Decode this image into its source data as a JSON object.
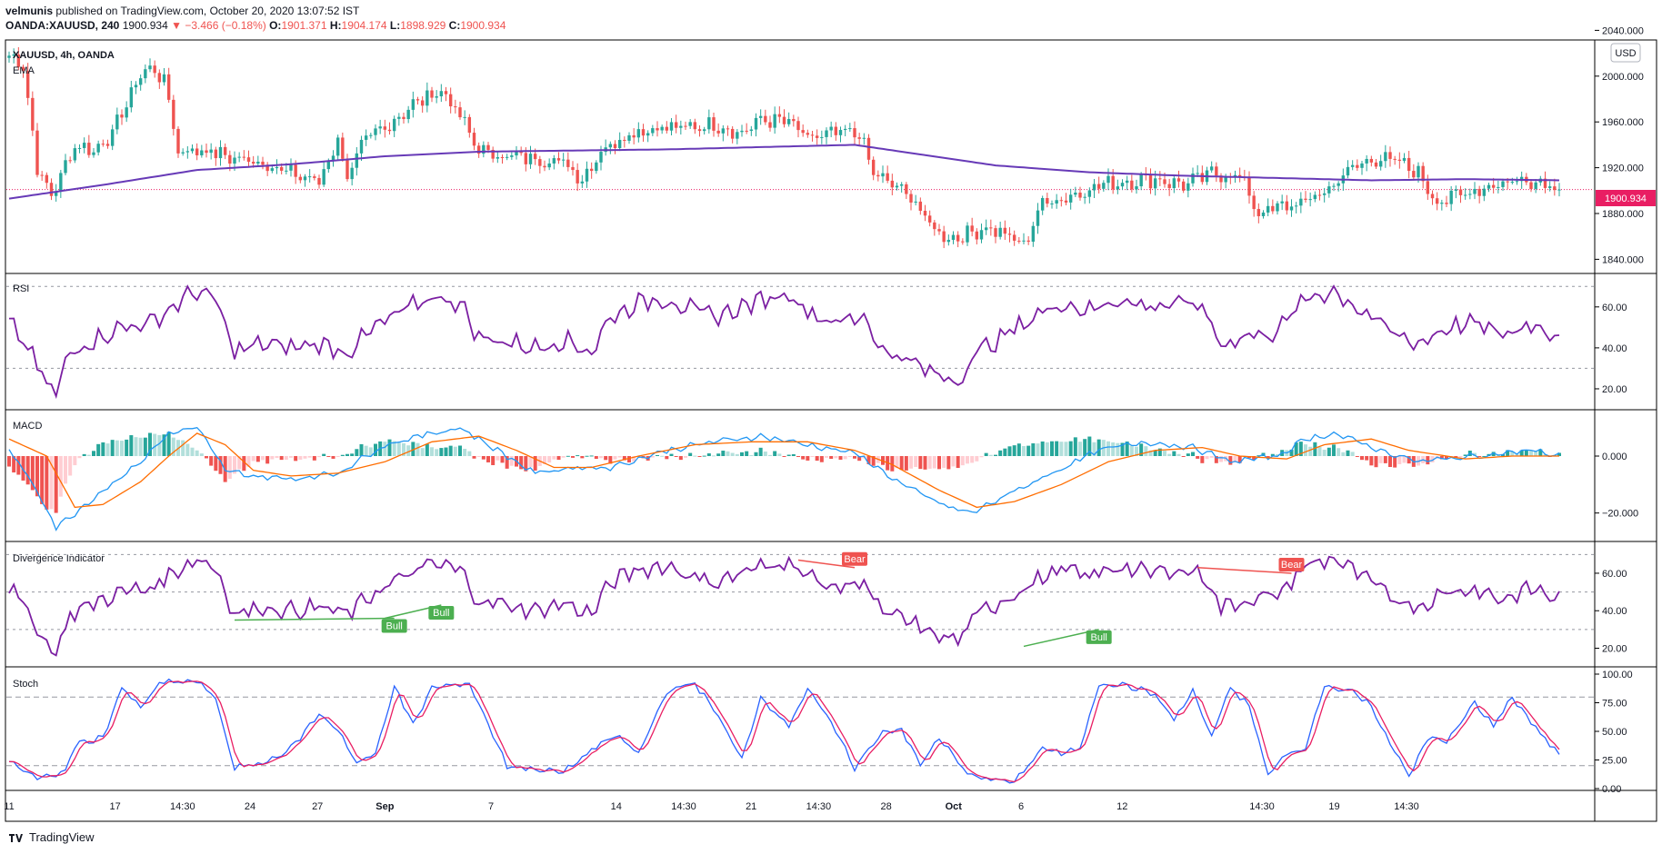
{
  "header": {
    "author": "velmunis",
    "published": "published on TradingView.com, October 20, 2020 13:07:52 IST",
    "symbol_line": "OANDA:XAUUSD, 240",
    "last": "1900.934",
    "arrow": "▼",
    "change": "−3.466 (−0.18%)",
    "o_label": "O:",
    "o": "1901.371",
    "h_label": "H:",
    "h": "1904.174",
    "l_label": "L:",
    "l": "1898.929",
    "c_label": "C:",
    "c": "1900.934"
  },
  "main_pane": {
    "title": "XAUUSD, 4h, OANDA",
    "indicator": "EMA",
    "currency": "USD",
    "price_label": "1900.934"
  },
  "rsi_pane": {
    "title": "RSI"
  },
  "macd_pane": {
    "title": "MACD"
  },
  "div_pane": {
    "title": "Divergence Indicator"
  },
  "stoch_pane": {
    "title": "Stoch"
  },
  "brand": {
    "name": "TradingView"
  },
  "colors": {
    "up": "#26a69a",
    "down": "#ef5350",
    "ema": "#673ab7",
    "rsi": "#7b1fa2",
    "macd": "#2196f3",
    "signal": "#ff6d00",
    "stoch_k": "#2962ff",
    "stoch_d": "#e91e63",
    "bull": "#4caf50",
    "bear": "#ef5350",
    "price_tag": "#e91e63"
  },
  "chart_data": [
    {
      "type": "candlestick",
      "title": "XAUUSD, 4h, OANDA",
      "ylim": [
        1830,
        2030
      ],
      "y_ticks": [
        "2040.000",
        "2000.000",
        "1960.000",
        "1920.000",
        "1880.000",
        "1840.000"
      ],
      "x_ticks": [
        "11",
        "17",
        "14:30",
        "24",
        "27",
        "Sep",
        "7",
        "14",
        "14:30",
        "21",
        "14:30",
        "28",
        "Oct",
        "6",
        "12",
        "14:30",
        "19",
        "14:30"
      ],
      "close_anchors": [
        [
          0,
          2018
        ],
        [
          3,
          2010
        ],
        [
          6,
          1920
        ],
        [
          9,
          1895
        ],
        [
          14,
          1940
        ],
        [
          18,
          1935
        ],
        [
          22,
          1950
        ],
        [
          26,
          1985
        ],
        [
          29,
          2008
        ],
        [
          33,
          1998
        ],
        [
          36,
          1935
        ],
        [
          42,
          1935
        ],
        [
          48,
          1928
        ],
        [
          54,
          1925
        ],
        [
          60,
          1915
        ],
        [
          66,
          1908
        ],
        [
          70,
          1945
        ],
        [
          72,
          1912
        ],
        [
          76,
          1945
        ],
        [
          80,
          1955
        ],
        [
          86,
          1975
        ],
        [
          92,
          1988
        ],
        [
          96,
          1965
        ],
        [
          100,
          1935
        ],
        [
          106,
          1930
        ],
        [
          112,
          1928
        ],
        [
          118,
          1925
        ],
        [
          122,
          1910
        ],
        [
          126,
          1935
        ],
        [
          132,
          1950
        ],
        [
          138,
          1955
        ],
        [
          144,
          1955
        ],
        [
          150,
          1958
        ],
        [
          156,
          1950
        ],
        [
          160,
          1962
        ],
        [
          166,
          1960
        ],
        [
          170,
          1945
        ],
        [
          176,
          1950
        ],
        [
          181,
          1950
        ],
        [
          184,
          1915
        ],
        [
          188,
          1905
        ],
        [
          192,
          1895
        ],
        [
          196,
          1870
        ],
        [
          200,
          1858
        ],
        [
          204,
          1862
        ],
        [
          208,
          1868
        ],
        [
          212,
          1862
        ],
        [
          216,
          1852
        ],
        [
          220,
          1890
        ],
        [
          226,
          1895
        ],
        [
          232,
          1905
        ],
        [
          238,
          1908
        ],
        [
          244,
          1910
        ],
        [
          250,
          1905
        ],
        [
          256,
          1915
        ],
        [
          262,
          1913
        ],
        [
          266,
          1880
        ],
        [
          270,
          1885
        ],
        [
          276,
          1890
        ],
        [
          282,
          1905
        ],
        [
          286,
          1920
        ],
        [
          290,
          1928
        ],
        [
          296,
          1925
        ],
        [
          300,
          1915
        ],
        [
          304,
          1890
        ],
        [
          310,
          1898
        ],
        [
          316,
          1905
        ],
        [
          322,
          1910
        ],
        [
          326,
          1908
        ],
        [
          330,
          1903
        ]
      ],
      "ema_anchors": [
        [
          0,
          1893
        ],
        [
          20,
          1905
        ],
        [
          40,
          1918
        ],
        [
          60,
          1923
        ],
        [
          80,
          1930
        ],
        [
          100,
          1934
        ],
        [
          120,
          1935
        ],
        [
          140,
          1936
        ],
        [
          160,
          1938
        ],
        [
          180,
          1940
        ],
        [
          190,
          1934
        ],
        [
          210,
          1922
        ],
        [
          230,
          1916
        ],
        [
          250,
          1913
        ],
        [
          270,
          1911
        ],
        [
          290,
          1909
        ],
        [
          310,
          1910
        ],
        [
          330,
          1909
        ]
      ],
      "last_price": 1900.934,
      "series": [
        {
          "name": "EMA",
          "description": "moving average"
        }
      ]
    },
    {
      "type": "line",
      "title": "RSI",
      "ylim": [
        12,
        75
      ],
      "bands": [
        70,
        30
      ],
      "y_ticks": [
        "60.00",
        "40.00",
        "20.00"
      ],
      "anchors": [
        [
          0,
          52
        ],
        [
          4,
          40
        ],
        [
          8,
          22
        ],
        [
          10,
          18
        ],
        [
          13,
          38
        ],
        [
          18,
          44
        ],
        [
          24,
          50
        ],
        [
          30,
          52
        ],
        [
          36,
          62
        ],
        [
          40,
          68
        ],
        [
          44,
          63
        ],
        [
          48,
          38
        ],
        [
          54,
          42
        ],
        [
          60,
          40
        ],
        [
          66,
          42
        ],
        [
          72,
          38
        ],
        [
          78,
          50
        ],
        [
          84,
          58
        ],
        [
          90,
          65
        ],
        [
          96,
          62
        ],
        [
          100,
          45
        ],
        [
          106,
          43
        ],
        [
          112,
          40
        ],
        [
          118,
          44
        ],
        [
          124,
          38
        ],
        [
          128,
          55
        ],
        [
          134,
          62
        ],
        [
          140,
          64
        ],
        [
          146,
          58
        ],
        [
          150,
          55
        ],
        [
          156,
          60
        ],
        [
          160,
          63
        ],
        [
          166,
          67
        ],
        [
          170,
          58
        ],
        [
          176,
          52
        ],
        [
          182,
          56
        ],
        [
          186,
          38
        ],
        [
          190,
          36
        ],
        [
          196,
          28
        ],
        [
          202,
          24
        ],
        [
          206,
          38
        ],
        [
          212,
          46
        ],
        [
          218,
          55
        ],
        [
          224,
          62
        ],
        [
          230,
          58
        ],
        [
          236,
          64
        ],
        [
          242,
          60
        ],
        [
          248,
          62
        ],
        [
          254,
          60
        ],
        [
          258,
          42
        ],
        [
          264,
          46
        ],
        [
          270,
          48
        ],
        [
          276,
          64
        ],
        [
          282,
          68
        ],
        [
          288,
          58
        ],
        [
          294,
          48
        ],
        [
          300,
          42
        ],
        [
          306,
          50
        ],
        [
          312,
          52
        ],
        [
          318,
          46
        ],
        [
          324,
          52
        ],
        [
          330,
          46
        ]
      ]
    },
    {
      "type": "line",
      "title": "MACD",
      "ylim": [
        -30,
        15
      ],
      "y_ticks": [
        "0.000",
        "−20.000"
      ],
      "macd_anchors": [
        [
          0,
          2
        ],
        [
          6,
          -12
        ],
        [
          10,
          -25
        ],
        [
          14,
          -20
        ],
        [
          20,
          -12
        ],
        [
          28,
          -2
        ],
        [
          34,
          8
        ],
        [
          40,
          10
        ],
        [
          46,
          -5
        ],
        [
          52,
          -7
        ],
        [
          60,
          -8
        ],
        [
          70,
          -6
        ],
        [
          80,
          4
        ],
        [
          90,
          8
        ],
        [
          96,
          10
        ],
        [
          104,
          2
        ],
        [
          112,
          -6
        ],
        [
          120,
          -4
        ],
        [
          128,
          -4
        ],
        [
          140,
          2
        ],
        [
          150,
          5
        ],
        [
          160,
          7
        ],
        [
          170,
          4
        ],
        [
          180,
          1
        ],
        [
          184,
          -3
        ],
        [
          190,
          -10
        ],
        [
          200,
          -18
        ],
        [
          205,
          -20
        ],
        [
          212,
          -14
        ],
        [
          222,
          -6
        ],
        [
          232,
          2
        ],
        [
          242,
          5
        ],
        [
          252,
          3
        ],
        [
          260,
          -2
        ],
        [
          270,
          0
        ],
        [
          276,
          6
        ],
        [
          282,
          8
        ],
        [
          292,
          2
        ],
        [
          300,
          -2
        ],
        [
          312,
          0
        ],
        [
          324,
          2
        ],
        [
          330,
          0
        ]
      ],
      "signal_anchors": [
        [
          0,
          6
        ],
        [
          8,
          0
        ],
        [
          14,
          -18
        ],
        [
          20,
          -17
        ],
        [
          28,
          -9
        ],
        [
          34,
          0
        ],
        [
          40,
          8
        ],
        [
          46,
          4
        ],
        [
          52,
          -5
        ],
        [
          60,
          -7
        ],
        [
          70,
          -6
        ],
        [
          80,
          -2
        ],
        [
          90,
          5
        ],
        [
          100,
          7
        ],
        [
          108,
          2
        ],
        [
          116,
          -4
        ],
        [
          124,
          -4
        ],
        [
          134,
          0
        ],
        [
          146,
          4
        ],
        [
          158,
          5
        ],
        [
          170,
          5
        ],
        [
          180,
          2
        ],
        [
          188,
          -3
        ],
        [
          198,
          -12
        ],
        [
          206,
          -18
        ],
        [
          214,
          -16
        ],
        [
          224,
          -10
        ],
        [
          234,
          -2
        ],
        [
          244,
          2
        ],
        [
          254,
          3
        ],
        [
          262,
          0
        ],
        [
          272,
          -1
        ],
        [
          280,
          4
        ],
        [
          290,
          6
        ],
        [
          298,
          2
        ],
        [
          310,
          -1
        ],
        [
          320,
          0
        ],
        [
          330,
          0
        ]
      ]
    },
    {
      "type": "line",
      "title": "Divergence Indicator",
      "ylim": [
        12,
        75
      ],
      "bands": [
        70,
        50,
        30
      ],
      "y_ticks": [
        "60.00",
        "40.00",
        "20.00"
      ],
      "annotations": [
        {
          "label": "Bull",
          "from": [
            48,
            35
          ],
          "to": [
            82,
            36
          ]
        },
        {
          "label": "Bull",
          "from": [
            80,
            36
          ],
          "to": [
            92,
            43
          ]
        },
        {
          "label": "Bear",
          "from": [
            168,
            67
          ],
          "to": [
            180,
            63
          ]
        },
        {
          "label": "Bear",
          "from": [
            253,
            63
          ],
          "to": [
            273,
            60
          ]
        },
        {
          "label": "Bull",
          "from": [
            216,
            21
          ],
          "to": [
            232,
            30
          ]
        }
      ]
    },
    {
      "type": "line",
      "title": "Stoch",
      "ylim": [
        0,
        100
      ],
      "bands": [
        80,
        20
      ],
      "y_ticks": [
        "100.00",
        "75.00",
        "50.00",
        "25.00",
        "0.00"
      ],
      "k_anchors": [
        [
          0,
          25
        ],
        [
          6,
          8
        ],
        [
          12,
          15
        ],
        [
          14,
          38
        ],
        [
          20,
          45
        ],
        [
          24,
          88
        ],
        [
          28,
          70
        ],
        [
          32,
          92
        ],
        [
          40,
          94
        ],
        [
          44,
          78
        ],
        [
          48,
          18
        ],
        [
          54,
          22
        ],
        [
          60,
          35
        ],
        [
          66,
          65
        ],
        [
          70,
          52
        ],
        [
          74,
          22
        ],
        [
          78,
          30
        ],
        [
          82,
          90
        ],
        [
          86,
          55
        ],
        [
          90,
          88
        ],
        [
          98,
          92
        ],
        [
          106,
          20
        ],
        [
          118,
          14
        ],
        [
          126,
          40
        ],
        [
          130,
          45
        ],
        [
          134,
          30
        ],
        [
          140,
          85
        ],
        [
          146,
          92
        ],
        [
          150,
          70
        ],
        [
          156,
          25
        ],
        [
          160,
          80
        ],
        [
          166,
          55
        ],
        [
          170,
          88
        ],
        [
          176,
          50
        ],
        [
          180,
          18
        ],
        [
          186,
          50
        ],
        [
          190,
          52
        ],
        [
          194,
          20
        ],
        [
          198,
          45
        ],
        [
          204,
          12
        ],
        [
          210,
          8
        ],
        [
          214,
          5
        ],
        [
          220,
          36
        ],
        [
          224,
          30
        ],
        [
          228,
          35
        ],
        [
          232,
          92
        ],
        [
          238,
          90
        ],
        [
          244,
          82
        ],
        [
          248,
          60
        ],
        [
          252,
          85
        ],
        [
          256,
          45
        ],
        [
          260,
          88
        ],
        [
          264,
          72
        ],
        [
          268,
          12
        ],
        [
          272,
          30
        ],
        [
          276,
          35
        ],
        [
          280,
          90
        ],
        [
          286,
          85
        ],
        [
          290,
          72
        ],
        [
          294,
          40
        ],
        [
          298,
          10
        ],
        [
          302,
          45
        ],
        [
          306,
          40
        ],
        [
          312,
          75
        ],
        [
          316,
          55
        ],
        [
          320,
          80
        ],
        [
          326,
          48
        ],
        [
          330,
          30
        ]
      ]
    }
  ]
}
